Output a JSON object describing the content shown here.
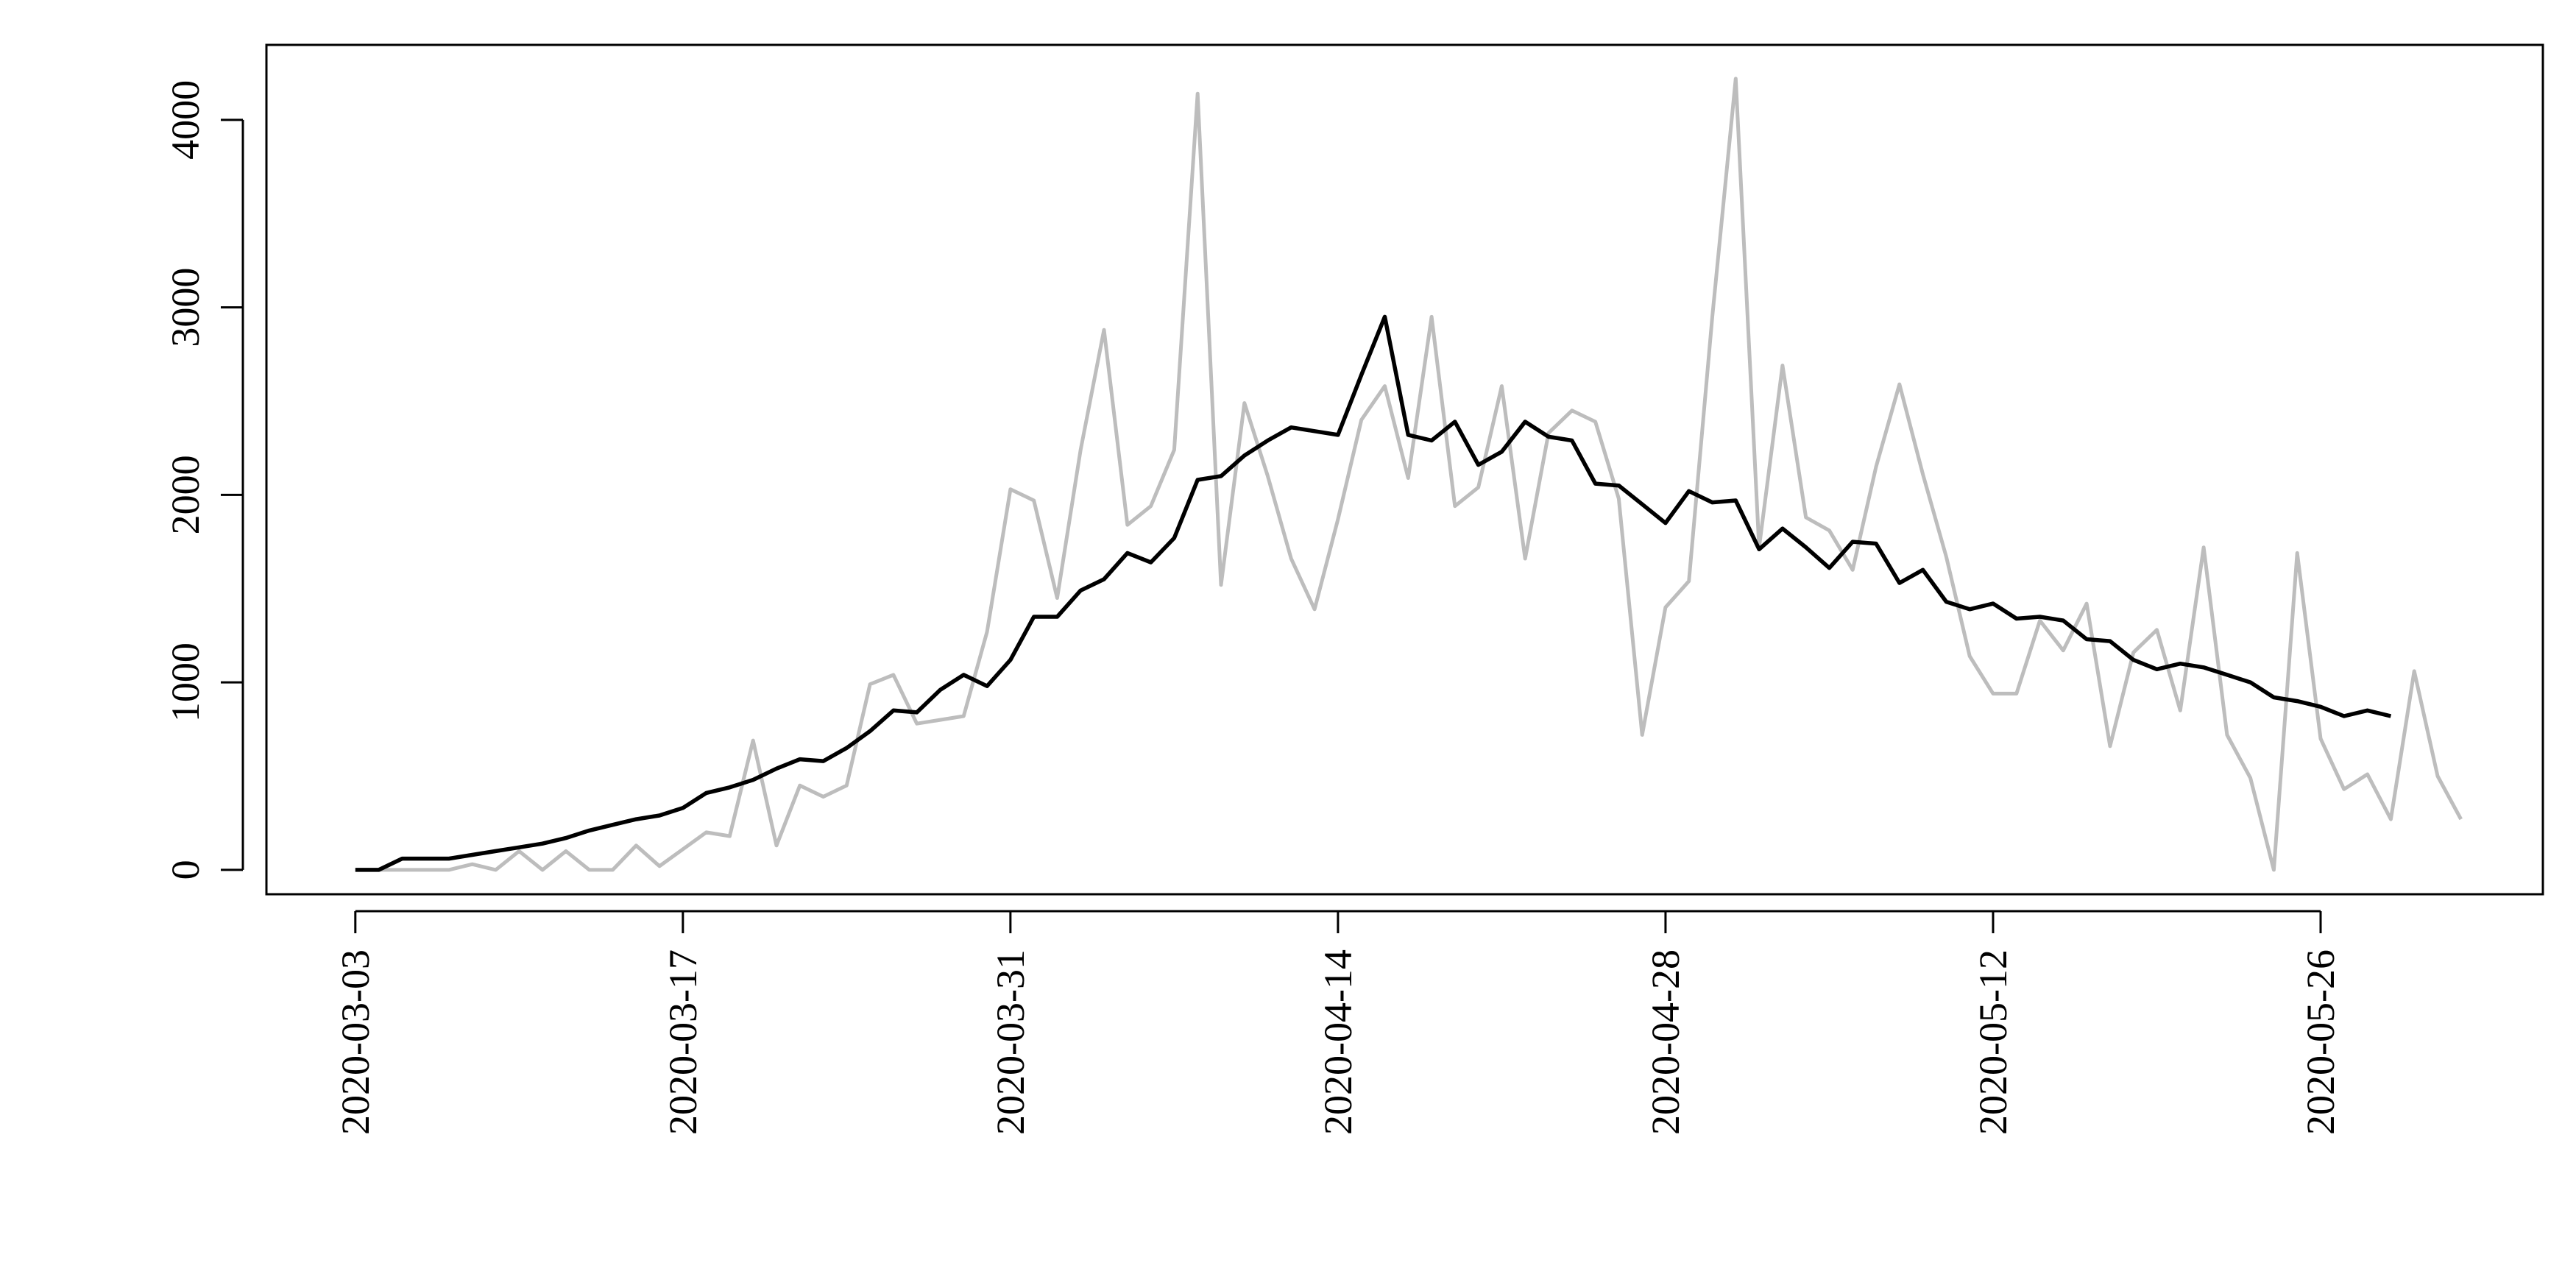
{
  "chart_data": {
    "type": "line",
    "title": "",
    "xlabel": "",
    "ylabel": "",
    "x_start": "2020-03-03",
    "x_end": "2020-06-04",
    "ylim": [
      -130,
      4400
    ],
    "x_ticks": [
      "2020-03-03",
      "2020-03-17",
      "2020-03-31",
      "2020-04-14",
      "2020-04-28",
      "2020-05-12",
      "2020-05-26"
    ],
    "y_ticks": [
      0,
      1000,
      2000,
      3000,
      4000
    ],
    "y_tick_labels": [
      "0",
      "1000",
      "2000",
      "3000",
      "4000"
    ],
    "grid": false,
    "legend": "none",
    "series": [
      {
        "color": "#bdbdbd",
        "values": [
          0,
          0,
          0,
          0,
          0,
          30,
          0,
          100,
          0,
          100,
          0,
          0,
          130,
          20,
          110,
          200,
          180,
          690,
          130,
          450,
          390,
          450,
          990,
          1040,
          780,
          800,
          820,
          1270,
          2030,
          1970,
          1450,
          2240,
          2880,
          1840,
          1940,
          2240,
          4140,
          1520,
          2490,
          2100,
          1660,
          1390,
          1870,
          2400,
          2580,
          2090,
          2950,
          1940,
          2040,
          2580,
          1660,
          2330,
          2450,
          2390,
          1980,
          720,
          1400,
          1540,
          2950,
          4220,
          1720,
          2690,
          1880,
          1810,
          1600,
          2150,
          2590,
          2110,
          1670,
          1140,
          940,
          940,
          1330,
          1170,
          1420,
          660,
          1160,
          1280,
          850,
          1720,
          720,
          490,
          0,
          1690,
          700,
          430,
          510,
          270,
          1060,
          500,
          270
        ]
      },
      {
        "color": "#000000",
        "values": [
          0,
          0,
          60,
          60,
          60,
          80,
          100,
          120,
          140,
          170,
          210,
          240,
          270,
          290,
          330,
          410,
          440,
          480,
          540,
          590,
          580,
          650,
          740,
          850,
          840,
          960,
          1040,
          980,
          1120,
          1350,
          1350,
          1490,
          1550,
          1690,
          1640,
          1770,
          2080,
          2100,
          2210,
          2290,
          2360,
          2340,
          2320,
          2640,
          2950,
          2320,
          2290,
          2390,
          2160,
          2230,
          2390,
          2310,
          2290,
          2060,
          2050,
          1950,
          1850,
          2020,
          1960,
          1970,
          1710,
          1820,
          1720,
          1610,
          1750,
          1740,
          1530,
          1600,
          1430,
          1390,
          1420,
          1340,
          1350,
          1330,
          1230,
          1220,
          1120,
          1070,
          1100,
          1080,
          1040,
          1000,
          920,
          900,
          870,
          820,
          850,
          820
        ]
      }
    ]
  }
}
